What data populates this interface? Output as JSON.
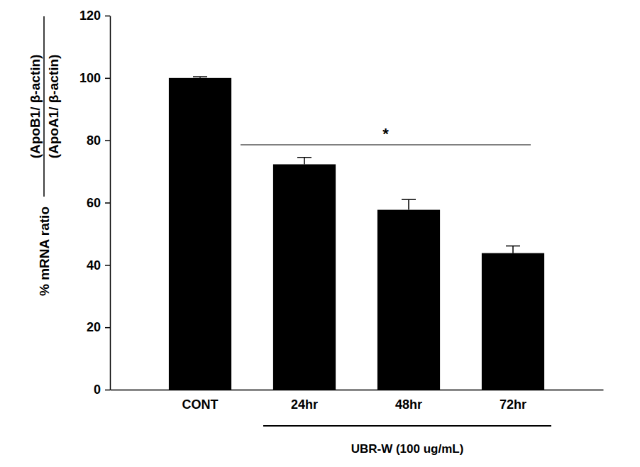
{
  "chart_data": {
    "type": "bar",
    "ylabel": {
      "prefix": "% mRNA ratio",
      "numerator": "(ApoB1/ β-actin)",
      "denominator": "(ApoA1/ β-actin)"
    },
    "categories": [
      "CONT",
      "24hr",
      "48hr",
      "72hr"
    ],
    "values": [
      100,
      72.3,
      57.7,
      43.8
    ],
    "errors": [
      0.4,
      2.2,
      3.3,
      2.3
    ],
    "color": "#000000",
    "ylim": [
      0,
      120
    ],
    "yticks": [
      0,
      20,
      40,
      60,
      80,
      100,
      120
    ],
    "annotations": [
      {
        "text": "*",
        "span": [
          "24hr",
          "72hr"
        ]
      }
    ],
    "group_label": {
      "text": "UBR-W (100 ug/mL)",
      "span": [
        "24hr",
        "72hr"
      ]
    }
  }
}
